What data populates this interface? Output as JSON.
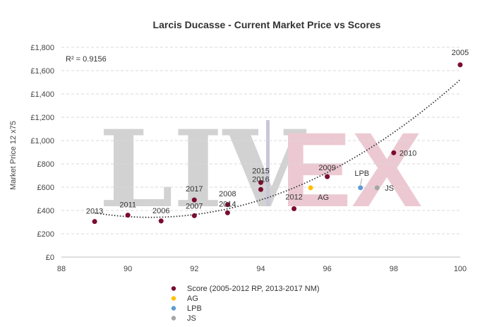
{
  "chart_data": {
    "type": "scatter",
    "title": "Larcis Ducasse - Current Market Price vs Scores",
    "xlabel": "",
    "ylabel": "Market Price 12 x75",
    "xlim": [
      88,
      100
    ],
    "ylim": [
      0,
      1800
    ],
    "x_ticks": [
      88,
      90,
      92,
      94,
      96,
      98,
      100
    ],
    "y_ticks": [
      0,
      200,
      400,
      600,
      800,
      1000,
      1200,
      1400,
      1600,
      1800
    ],
    "y_tick_labels": [
      "£0",
      "£200",
      "£400",
      "£600",
      "£800",
      "£1,000",
      "£1,200",
      "£1,400",
      "£1,600",
      "£1,800"
    ],
    "grid": "horizontal",
    "legend_position": "bottom",
    "r_squared": "R² = 0.9156",
    "trendline": {
      "type": "polynomial",
      "style": "dotted",
      "color": "#333333"
    },
    "series": [
      {
        "name": "Score (2005-2012 RP, 2013-2017 NM)",
        "color": "#7b0c2e",
        "points": [
          {
            "x": 89,
            "y": 305,
            "label": "2013"
          },
          {
            "x": 90,
            "y": 360,
            "label": "2011"
          },
          {
            "x": 91,
            "y": 310,
            "label": "2006"
          },
          {
            "x": 92,
            "y": 490,
            "label": "2017"
          },
          {
            "x": 92,
            "y": 355,
            "label": "2007"
          },
          {
            "x": 93,
            "y": 450,
            "label": "2008"
          },
          {
            "x": 93,
            "y": 380,
            "label": "2014"
          },
          {
            "x": 94,
            "y": 640,
            "label": "2015"
          },
          {
            "x": 94,
            "y": 580,
            "label": "2016"
          },
          {
            "x": 95,
            "y": 415,
            "label": "2012"
          },
          {
            "x": 96,
            "y": 690,
            "label": "2009"
          },
          {
            "x": 98,
            "y": 895,
            "label": "2010"
          },
          {
            "x": 100,
            "y": 1650,
            "label": "2005"
          }
        ]
      },
      {
        "name": "AG",
        "color": "#ffc000",
        "points": [
          {
            "x": 95.5,
            "y": 595,
            "label": "AG"
          }
        ]
      },
      {
        "name": "LPB",
        "color": "#5b9bd5",
        "points": [
          {
            "x": 97,
            "y": 595,
            "label": "LPB"
          }
        ]
      },
      {
        "name": "JS",
        "color": "#a5a5a5",
        "points": [
          {
            "x": 97.5,
            "y": 595,
            "label": "JS"
          }
        ]
      }
    ],
    "watermark": [
      "LIV",
      "EX"
    ]
  }
}
